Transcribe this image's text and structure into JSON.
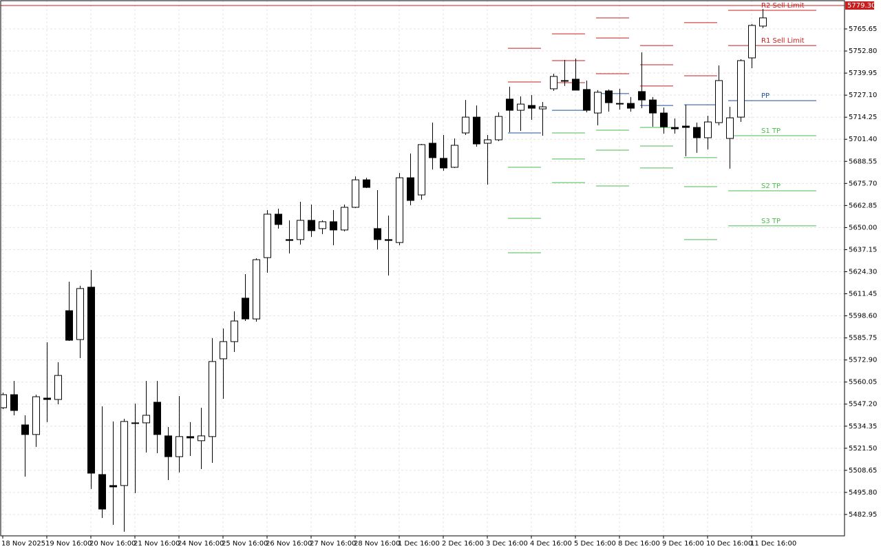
{
  "chart_data": {
    "type": "candlestick",
    "categories": [
      "18 Nov 2025",
      null,
      null,
      null,
      "19 Nov 16:00",
      null,
      null,
      null,
      "20 Nov 16:00",
      null,
      null,
      null,
      "21 Nov 16:00",
      null,
      null,
      null,
      "24 Nov 16:00",
      null,
      null,
      null,
      "25 Nov 16:00",
      null,
      null,
      null,
      "26 Nov 16:00",
      null,
      null,
      null,
      "27 Nov 16:00",
      null,
      null,
      null,
      "28 Nov 16:00",
      null,
      null,
      null,
      "1 Dec 16:00",
      null,
      null,
      null,
      "2 Dec 16:00",
      null,
      null,
      null,
      "3 Dec 16:00",
      null,
      null,
      null,
      "4 Dec 16:00",
      null,
      null,
      null,
      "5 Dec 16:00",
      null,
      null,
      null,
      "8 Dec 16:00",
      null,
      null,
      null,
      "9 Dec 16:00",
      null,
      null,
      null,
      "10 Dec 16:00",
      null,
      null,
      null,
      "11 Dec 16:00",
      null
    ],
    "open": [
      5545.1,
      5552.7,
      5535.1,
      5529.5,
      5550.7,
      5549.9,
      5601.6,
      5584.8,
      5615.3,
      5506.2,
      5499.8,
      5499.8,
      5536.3,
      5536.3,
      5548.3,
      5528.7,
      5516.6,
      5528.3,
      5525.9,
      5528.3,
      5573.6,
      5583.6,
      5608.9,
      5596.8,
      5632.5,
      5657.8,
      5643.0,
      5643.0,
      5654.2,
      5649.4,
      5653.4,
      5648.6,
      5661.8,
      5677.8,
      5649.4,
      5643.0,
      5641.3,
      5679.0,
      5669.0,
      5699.1,
      5690.3,
      5685.1,
      5705.1,
      5714.3,
      5699.1,
      5701.1,
      5724.8,
      5718.3,
      5721.1,
      5719.1,
      5730.8,
      5735.6,
      5736.4,
      5730.4,
      5716.7,
      5729.6,
      5722.3,
      5722.3,
      5729.2,
      5724.3,
      5716.7,
      5708.3,
      5709.1,
      5708.3,
      5702.3,
      5711.1,
      5701.9,
      5714.3,
      5748.8,
      5767.3
    ],
    "high": [
      5553.9,
      5560.7,
      5540.7,
      5552.7,
      5583.2,
      5571.6,
      5618.5,
      5616.1,
      5625.3,
      5545.9,
      5537.1,
      5538.7,
      5547.5,
      5560.7,
      5560.7,
      5533.9,
      5551.9,
      5536.7,
      5545.1,
      5585.6,
      5591.2,
      5601.2,
      5622.9,
      5632.1,
      5660.2,
      5661.0,
      5654.2,
      5665.0,
      5663.4,
      5654.2,
      5660.2,
      5663.4,
      5679.8,
      5679.0,
      5671.8,
      5657.0,
      5681.8,
      5693.1,
      5698.7,
      5711.1,
      5703.9,
      5701.9,
      5724.3,
      5721.1,
      5703.9,
      5717.1,
      5732.0,
      5726.4,
      5727.2,
      5723.1,
      5739.6,
      5747.6,
      5748.4,
      5735.6,
      5730.0,
      5730.4,
      5730.8,
      5726.0,
      5752.0,
      5726.0,
      5719.9,
      5713.5,
      5721.5,
      5711.1,
      5715.1,
      5744.4,
      5720.3,
      5748.0,
      5768.5,
      5777.3
    ],
    "low": [
      5544.3,
      5540.7,
      5505.0,
      5522.3,
      5536.7,
      5547.1,
      5584.0,
      5574.0,
      5497.8,
      5480.9,
      5476.9,
      5472.9,
      5495.4,
      5519.0,
      5518.6,
      5503.0,
      5507.4,
      5517.0,
      5509.4,
      5513.0,
      5550.3,
      5577.6,
      5595.6,
      5595.2,
      5623.7,
      5649.4,
      5634.9,
      5640.1,
      5644.6,
      5646.2,
      5639.7,
      5647.8,
      5661.4,
      5673.0,
      5637.3,
      5622.1,
      5639.7,
      5663.0,
      5666.2,
      5683.8,
      5683.1,
      5684.7,
      5703.9,
      5697.1,
      5675.0,
      5700.3,
      5705.5,
      5706.3,
      5712.7,
      5703.5,
      5729.6,
      5732.4,
      5730.0,
      5717.1,
      5709.5,
      5717.5,
      5718.7,
      5717.5,
      5719.5,
      5708.7,
      5704.7,
      5704.7,
      5691.5,
      5693.5,
      5695.5,
      5709.5,
      5684.3,
      5711.5,
      5742.8,
      5766.1
    ],
    "close": [
      5552.7,
      5543.5,
      5529.5,
      5551.5,
      5549.9,
      5563.9,
      5584.4,
      5614.5,
      5507.0,
      5486.1,
      5499.0,
      5537.1,
      5535.9,
      5540.7,
      5529.5,
      5516.6,
      5528.3,
      5527.5,
      5528.7,
      5572.0,
      5583.6,
      5595.6,
      5596.8,
      5631.3,
      5657.8,
      5651.8,
      5642.5,
      5654.2,
      5648.2,
      5653.4,
      5648.6,
      5661.8,
      5677.8,
      5673.4,
      5643.0,
      5642.5,
      5679.0,
      5665.8,
      5698.3,
      5690.7,
      5684.7,
      5697.9,
      5714.3,
      5698.7,
      5701.1,
      5714.7,
      5718.3,
      5721.9,
      5719.5,
      5720.3,
      5738.0,
      5735.2,
      5730.0,
      5718.3,
      5728.8,
      5722.7,
      5721.9,
      5719.5,
      5724.3,
      5716.7,
      5708.7,
      5707.5,
      5708.3,
      5702.3,
      5711.5,
      5735.6,
      5713.9,
      5747.2,
      5767.7,
      5772.1
    ],
    "up_color": "#ffffff",
    "down_color": "#000000",
    "pivots": [
      {
        "resistance": [
          5754.4,
          5734.8
        ],
        "pivot": 5705.1,
        "support": [
          5685.1,
          5655.4,
          5635.3
        ]
      },
      {
        "resistance": [
          5762.8,
          5747.2,
          5734.4
        ],
        "pivot": 5718.3,
        "support": [
          5705.1,
          5689.9,
          5676.2
        ]
      },
      {
        "resistance": [
          5772.1,
          5760.4,
          5739.6
        ],
        "pivot": 5728.0,
        "support": [
          5706.7,
          5695.1,
          5674.2
        ]
      },
      {
        "resistance": [
          5756.0,
          5744.8,
          5732.4
        ],
        "pivot": 5721.1,
        "support": [
          5708.3,
          5697.5,
          5684.7
        ]
      },
      {
        "resistance": [
          5769.3,
          5738.4
        ],
        "pivot": 5721.5,
        "support": [
          5690.7,
          5673.8,
          5643.0
        ]
      },
      {
        "resistance": [
          5776.5,
          5756.0
        ],
        "pivot": 5723.9,
        "support": [
          5703.5,
          5671.4,
          5651.0
        ]
      }
    ],
    "level_labels": [
      "R2 Sell Limit",
      "R1 Sell Limit",
      "PP",
      "S1 TP",
      "S2 TP",
      "S3 TP"
    ],
    "resistance_color": "#c81e1e",
    "pivot_color": "#1f4e9c",
    "support_color": "#4cbb4c",
    "price": 5779.3,
    "price_label": "5779.30",
    "price_color": "#c81e1e",
    "ylim": [
      5470.5,
      5781.7
    ],
    "yticks": [
      5765.65,
      {
        "value": 5752.8,
        "label": "5752.80"
      },
      5739.95,
      {
        "value": 5727.1,
        "label": "5727.10"
      },
      5714.25,
      {
        "value": 5701.4,
        "label": "5701.40"
      },
      5688.55,
      {
        "value": 5675.7,
        "label": "5675.70"
      },
      5662.85,
      {
        "value": 5650,
        "label": "5650.00"
      },
      5637.15,
      {
        "value": 5624.3,
        "label": "5624.30"
      },
      5611.45,
      {
        "value": 5598.6,
        "label": "5598.60"
      },
      5585.75,
      {
        "value": 5572.9,
        "label": "5572.90"
      },
      5560.05,
      {
        "value": 5547.2,
        "label": "5547.20"
      },
      5534.35,
      {
        "value": 5521.5,
        "label": "5521.50"
      },
      5508.65,
      {
        "value": 5495.8,
        "label": "5495.80"
      },
      5482.95
    ],
    "grid": true
  }
}
